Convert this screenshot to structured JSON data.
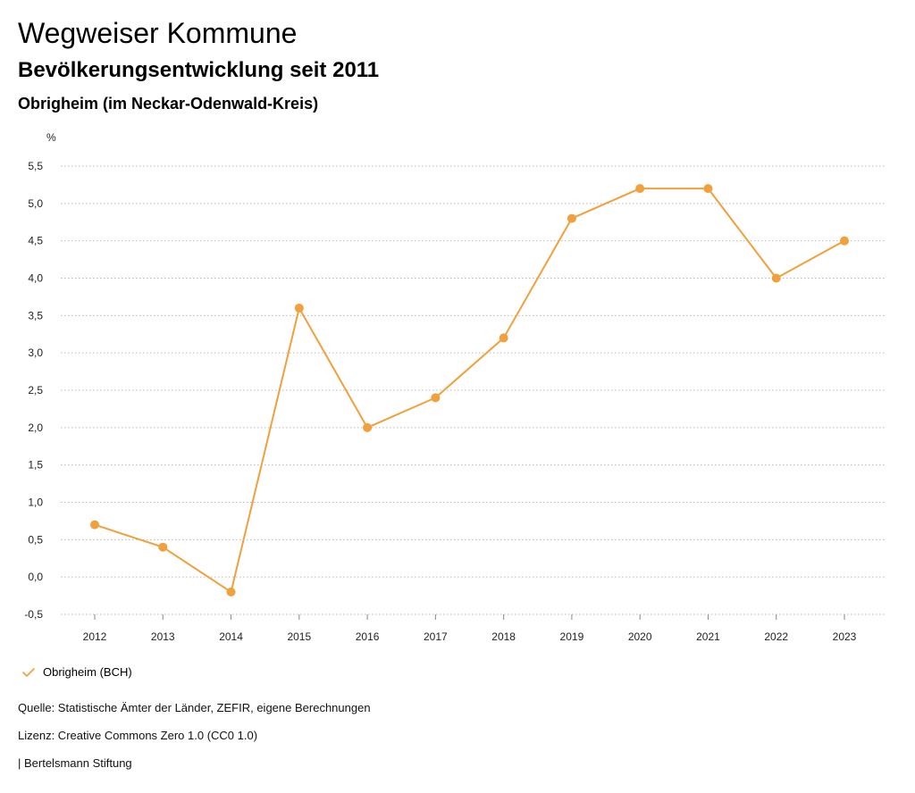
{
  "header": {
    "title": "Wegweiser Kommune",
    "subtitle": "Bevölkerungsentwicklung seit 2011",
    "region": "Obrigheim (im Neckar-Odenwald-Kreis)"
  },
  "colors": {
    "series": "#f0a03c",
    "grid": "#bbbbbb",
    "axis": "#888888"
  },
  "chart_data": {
    "type": "line",
    "title": "Bevölkerungsentwicklung seit 2011",
    "ylabel": "%",
    "xlabel": "",
    "ylim": [
      -0.5,
      5.5
    ],
    "yticks": [
      -0.5,
      0.0,
      0.5,
      1.0,
      1.5,
      2.0,
      2.5,
      3.0,
      3.5,
      4.0,
      4.5,
      5.0,
      5.5
    ],
    "ytick_labels": [
      "-0,5",
      "0,0",
      "0,5",
      "1,0",
      "1,5",
      "2,0",
      "2,5",
      "3,0",
      "3,5",
      "4,0",
      "4,5",
      "5,0",
      "5,5"
    ],
    "grid": true,
    "legend_position": "bottom-left",
    "categories": [
      "2012",
      "2013",
      "2014",
      "2015",
      "2016",
      "2017",
      "2018",
      "2019",
      "2020",
      "2021",
      "2022",
      "2023"
    ],
    "series": [
      {
        "name": "Obrigheim (BCH)",
        "values": [
          0.7,
          0.4,
          -0.2,
          3.6,
          2.0,
          2.4,
          3.2,
          4.8,
          5.2,
          5.2,
          4.0,
          4.5
        ]
      }
    ]
  },
  "legend": {
    "label": "Obrigheim (BCH)",
    "icon": "check-icon"
  },
  "footer": {
    "source": "Quelle: Statistische Ämter der Länder, ZEFIR, eigene Berechnungen",
    "license": "Lizenz: Creative Commons Zero 1.0 (CC0 1.0)",
    "publisher": "| Bertelsmann Stiftung"
  }
}
